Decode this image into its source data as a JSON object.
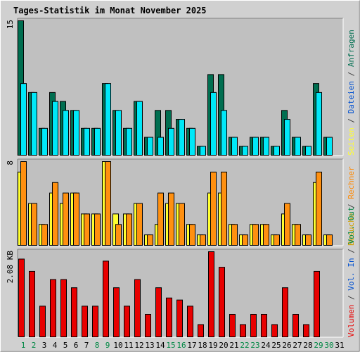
{
  "chart_data": {
    "type": "bar",
    "title": "Tages-Statistik im Monat November 2025",
    "categories": [
      "1",
      "2",
      "3",
      "4",
      "5",
      "6",
      "7",
      "8",
      "9",
      "10",
      "11",
      "12",
      "13",
      "14",
      "15",
      "16",
      "17",
      "18",
      "19",
      "20",
      "21",
      "22",
      "23",
      "24",
      "25",
      "26",
      "27",
      "28",
      "29",
      "30",
      "31"
    ],
    "weekend_days": [
      "1",
      "2",
      "8",
      "9",
      "15",
      "16",
      "22",
      "23",
      "29",
      "30"
    ],
    "grid": false,
    "colors": {
      "title": "#0000cc",
      "tick": "#000000",
      "weekend_tick": "#008844",
      "panel_bg": "#c0c0c0",
      "anfragen": "#006e50",
      "dateien": "#00e8f8",
      "seiten": "#18b8d8",
      "besuche": "#ffff30",
      "rechner": "#ff9010",
      "volumen": "#e80000"
    },
    "panels": [
      {
        "id": "requests",
        "max_label": "15",
        "ylim": [
          0,
          15
        ],
        "series": [
          {
            "name": "Anfragen",
            "values": [
              15,
              7,
              3,
              7,
              6,
              5,
              3,
              3,
              8,
              5,
              3,
              6,
              2,
              5,
              5,
              4,
              3,
              1,
              9,
              9,
              2,
              1,
              2,
              2,
              1,
              5,
              2,
              1,
              8,
              2,
              0
            ]
          },
          {
            "name": "Dateien",
            "values": [
              8,
              7,
              3,
              6,
              5,
              5,
              3,
              3,
              8,
              5,
              3,
              6,
              2,
              2,
              3,
              4,
              3,
              1,
              7,
              5,
              2,
              1,
              2,
              2,
              1,
              4,
              2,
              1,
              7,
              2,
              0
            ]
          }
        ]
      },
      {
        "id": "visits",
        "max_label": "8",
        "ylim": [
          0,
          8
        ],
        "series": [
          {
            "name": "Besuche",
            "values": [
              7,
              4,
              2,
              5,
              4,
              5,
              3,
              3,
              8,
              3,
              3,
              4,
              1,
              2,
              4,
              4,
              2,
              1,
              5,
              5,
              2,
              1,
              2,
              2,
              1,
              3,
              2,
              1,
              6,
              1,
              0
            ]
          },
          {
            "name": "Rechner",
            "values": [
              8,
              4,
              2,
              6,
              5,
              5,
              3,
              3,
              8,
              2,
              3,
              4,
              1,
              5,
              5,
              4,
              2,
              1,
              7,
              7,
              2,
              1,
              2,
              2,
              1,
              4,
              2,
              1,
              7,
              1,
              0
            ]
          }
        ]
      },
      {
        "id": "volume",
        "max_label": "2.08 KB",
        "ylim": [
          0,
          2.08
        ],
        "series": [
          {
            "name": "Volumen",
            "values": [
              1.9,
              1.6,
              0.75,
              1.4,
              1.4,
              1.2,
              0.75,
              0.75,
              1.85,
              1.2,
              0.75,
              1.4,
              0.55,
              1.2,
              0.95,
              0.9,
              0.75,
              0.3,
              2.08,
              1.7,
              0.55,
              0.3,
              0.55,
              0.55,
              0.3,
              1.2,
              0.55,
              0.3,
              1.6,
              0,
              0
            ]
          }
        ]
      }
    ],
    "legends": {
      "top": [
        {
          "text": "Seiten",
          "color": "#ffff30"
        },
        {
          "text": " / ",
          "color": "#404040"
        },
        {
          "text": "Dateien",
          "color": "#0050d0"
        },
        {
          "text": " / ",
          "color": "#404040"
        },
        {
          "text": "Anfragen",
          "color": "#006e50"
        }
      ],
      "middle": [
        {
          "text": "Besuche",
          "color": "#d0a000"
        },
        {
          "text": " / ",
          "color": "#404040"
        },
        {
          "text": "Rechner",
          "color": "#ff8800"
        }
      ],
      "bottom": [
        {
          "text": "Volumen",
          "color": "#e80000"
        },
        {
          "text": " / ",
          "color": "#404040"
        },
        {
          "text": "Vol. In",
          "color": "#0050d0"
        },
        {
          "text": " / ",
          "color": "#404040"
        },
        {
          "text": "Vol. Out",
          "color": "#008844"
        }
      ]
    }
  }
}
